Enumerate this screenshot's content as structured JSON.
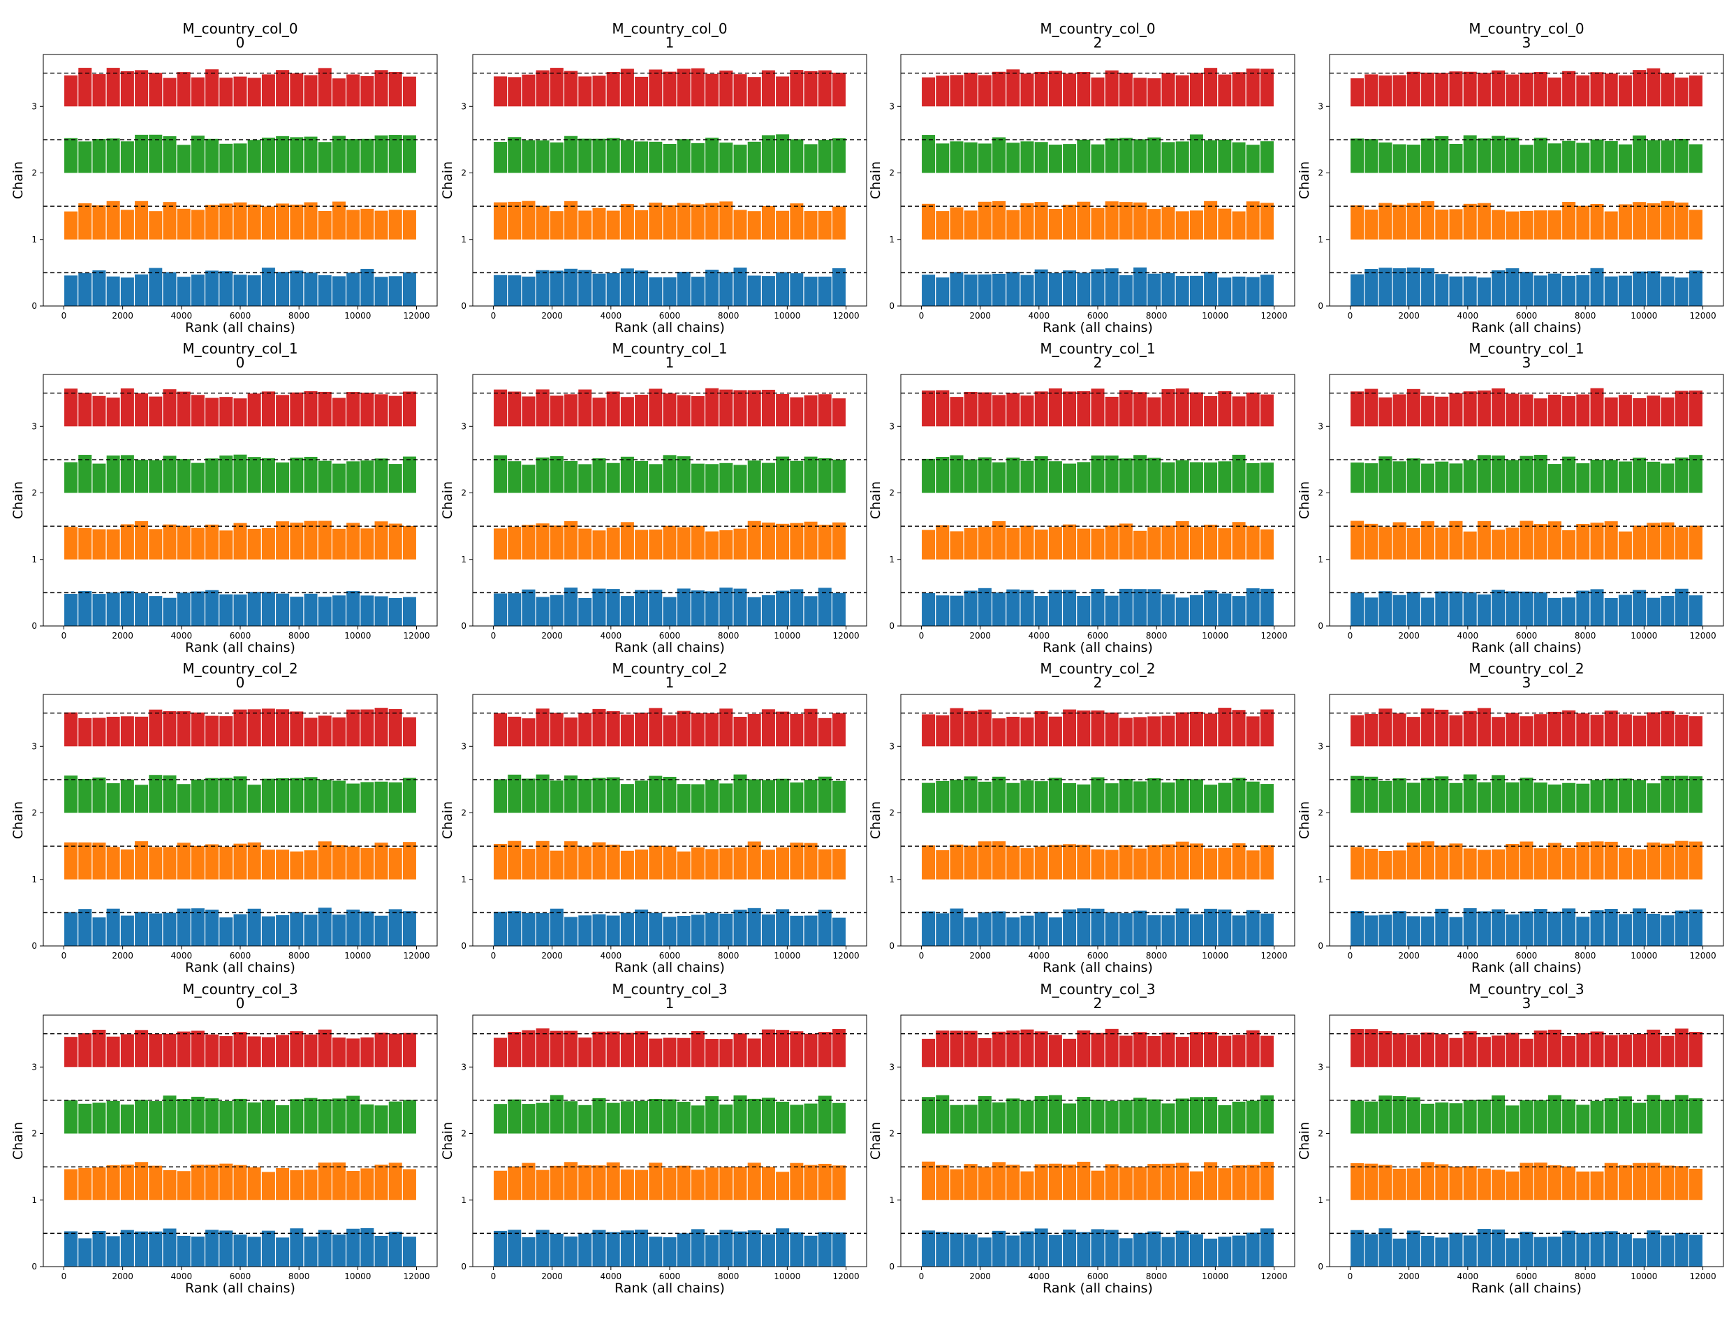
{
  "figure": {
    "type": "rank_plot_grid",
    "rows": 4,
    "cols": 4,
    "colors": [
      "#1f77b4",
      "#ff7f0e",
      "#2ca02c",
      "#d62728"
    ],
    "reference_line_color": "#000000"
  },
  "chart_data": [
    {
      "type": "bar",
      "title": "M_country_col_0",
      "subtitle": "0",
      "xlabel": "Rank (all chains)",
      "ylabel": "Chain",
      "xticks": [
        0,
        2000,
        4000,
        6000,
        8000,
        10000,
        12000
      ],
      "yticks": [
        0,
        1,
        2,
        3
      ],
      "xlim": [
        -700,
        12700
      ],
      "ylim": [
        0,
        3.78
      ],
      "bins": 25,
      "chains": [
        0,
        1,
        2,
        3
      ],
      "ref_levels": [
        0.5,
        1.5,
        2.5,
        3.5
      ]
    },
    {
      "type": "bar",
      "title": "M_country_col_0",
      "subtitle": "1",
      "xlabel": "Rank (all chains)",
      "ylabel": "Chain",
      "xticks": [
        0,
        2000,
        4000,
        6000,
        8000,
        10000,
        12000
      ],
      "yticks": [
        0,
        1,
        2,
        3
      ],
      "xlim": [
        -700,
        12700
      ],
      "ylim": [
        0,
        3.78
      ],
      "bins": 25,
      "chains": [
        0,
        1,
        2,
        3
      ],
      "ref_levels": [
        0.5,
        1.5,
        2.5,
        3.5
      ]
    },
    {
      "type": "bar",
      "title": "M_country_col_0",
      "subtitle": "2",
      "xlabel": "Rank (all chains)",
      "ylabel": "Chain",
      "xticks": [
        0,
        2000,
        4000,
        6000,
        8000,
        10000,
        12000
      ],
      "yticks": [
        0,
        1,
        2,
        3
      ],
      "xlim": [
        -700,
        12700
      ],
      "ylim": [
        0,
        3.78
      ],
      "bins": 25,
      "chains": [
        0,
        1,
        2,
        3
      ],
      "ref_levels": [
        0.5,
        1.5,
        2.5,
        3.5
      ]
    },
    {
      "type": "bar",
      "title": "M_country_col_0",
      "subtitle": "3",
      "xlabel": "Rank (all chains)",
      "ylabel": "Chain",
      "xticks": [
        0,
        2000,
        4000,
        6000,
        8000,
        10000,
        12000
      ],
      "yticks": [
        0,
        1,
        2,
        3
      ],
      "xlim": [
        -700,
        12700
      ],
      "ylim": [
        0,
        3.78
      ],
      "bins": 25,
      "chains": [
        0,
        1,
        2,
        3
      ],
      "ref_levels": [
        0.5,
        1.5,
        2.5,
        3.5
      ]
    },
    {
      "type": "bar",
      "title": "M_country_col_1",
      "subtitle": "0",
      "xlabel": "Rank (all chains)",
      "ylabel": "Chain",
      "xticks": [
        0,
        2000,
        4000,
        6000,
        8000,
        10000,
        12000
      ],
      "yticks": [
        0,
        1,
        2,
        3
      ],
      "xlim": [
        -700,
        12700
      ],
      "ylim": [
        0,
        3.78
      ],
      "bins": 25,
      "chains": [
        0,
        1,
        2,
        3
      ],
      "ref_levels": [
        0.5,
        1.5,
        2.5,
        3.5
      ]
    },
    {
      "type": "bar",
      "title": "M_country_col_1",
      "subtitle": "1",
      "xlabel": "Rank (all chains)",
      "ylabel": "Chain",
      "xticks": [
        0,
        2000,
        4000,
        6000,
        8000,
        10000,
        12000
      ],
      "yticks": [
        0,
        1,
        2,
        3
      ],
      "xlim": [
        -700,
        12700
      ],
      "ylim": [
        0,
        3.78
      ],
      "bins": 25,
      "chains": [
        0,
        1,
        2,
        3
      ],
      "ref_levels": [
        0.5,
        1.5,
        2.5,
        3.5
      ]
    },
    {
      "type": "bar",
      "title": "M_country_col_1",
      "subtitle": "2",
      "xlabel": "Rank (all chains)",
      "ylabel": "Chain",
      "xticks": [
        0,
        2000,
        4000,
        6000,
        8000,
        10000,
        12000
      ],
      "yticks": [
        0,
        1,
        2,
        3
      ],
      "xlim": [
        -700,
        12700
      ],
      "ylim": [
        0,
        3.78
      ],
      "bins": 25,
      "chains": [
        0,
        1,
        2,
        3
      ],
      "ref_levels": [
        0.5,
        1.5,
        2.5,
        3.5
      ]
    },
    {
      "type": "bar",
      "title": "M_country_col_1",
      "subtitle": "3",
      "xlabel": "Rank (all chains)",
      "ylabel": "Chain",
      "xticks": [
        0,
        2000,
        4000,
        6000,
        8000,
        10000,
        12000
      ],
      "yticks": [
        0,
        1,
        2,
        3
      ],
      "xlim": [
        -700,
        12700
      ],
      "ylim": [
        0,
        3.78
      ],
      "bins": 25,
      "chains": [
        0,
        1,
        2,
        3
      ],
      "ref_levels": [
        0.5,
        1.5,
        2.5,
        3.5
      ]
    },
    {
      "type": "bar",
      "title": "M_country_col_2",
      "subtitle": "0",
      "xlabel": "Rank (all chains)",
      "ylabel": "Chain",
      "xticks": [
        0,
        2000,
        4000,
        6000,
        8000,
        10000,
        12000
      ],
      "yticks": [
        0,
        1,
        2,
        3
      ],
      "xlim": [
        -700,
        12700
      ],
      "ylim": [
        0,
        3.78
      ],
      "bins": 25,
      "chains": [
        0,
        1,
        2,
        3
      ],
      "ref_levels": [
        0.5,
        1.5,
        2.5,
        3.5
      ]
    },
    {
      "type": "bar",
      "title": "M_country_col_2",
      "subtitle": "1",
      "xlabel": "Rank (all chains)",
      "ylabel": "Chain",
      "xticks": [
        0,
        2000,
        4000,
        6000,
        8000,
        10000,
        12000
      ],
      "yticks": [
        0,
        1,
        2,
        3
      ],
      "xlim": [
        -700,
        12700
      ],
      "ylim": [
        0,
        3.78
      ],
      "bins": 25,
      "chains": [
        0,
        1,
        2,
        3
      ],
      "ref_levels": [
        0.5,
        1.5,
        2.5,
        3.5
      ]
    },
    {
      "type": "bar",
      "title": "M_country_col_2",
      "subtitle": "2",
      "xlabel": "Rank (all chains)",
      "ylabel": "Chain",
      "xticks": [
        0,
        2000,
        4000,
        6000,
        8000,
        10000,
        12000
      ],
      "yticks": [
        0,
        1,
        2,
        3
      ],
      "xlim": [
        -700,
        12700
      ],
      "ylim": [
        0,
        3.78
      ],
      "bins": 25,
      "chains": [
        0,
        1,
        2,
        3
      ],
      "ref_levels": [
        0.5,
        1.5,
        2.5,
        3.5
      ]
    },
    {
      "type": "bar",
      "title": "M_country_col_2",
      "subtitle": "3",
      "xlabel": "Rank (all chains)",
      "ylabel": "Chain",
      "xticks": [
        0,
        2000,
        4000,
        6000,
        8000,
        10000,
        12000
      ],
      "yticks": [
        0,
        1,
        2,
        3
      ],
      "xlim": [
        -700,
        12700
      ],
      "ylim": [
        0,
        3.78
      ],
      "bins": 25,
      "chains": [
        0,
        1,
        2,
        3
      ],
      "ref_levels": [
        0.5,
        1.5,
        2.5,
        3.5
      ]
    },
    {
      "type": "bar",
      "title": "M_country_col_3",
      "subtitle": "0",
      "xlabel": "Rank (all chains)",
      "ylabel": "Chain",
      "xticks": [
        0,
        2000,
        4000,
        6000,
        8000,
        10000,
        12000
      ],
      "yticks": [
        0,
        1,
        2,
        3
      ],
      "xlim": [
        -700,
        12700
      ],
      "ylim": [
        0,
        3.78
      ],
      "bins": 25,
      "chains": [
        0,
        1,
        2,
        3
      ],
      "ref_levels": [
        0.5,
        1.5,
        2.5,
        3.5
      ]
    },
    {
      "type": "bar",
      "title": "M_country_col_3",
      "subtitle": "1",
      "xlabel": "Rank (all chains)",
      "ylabel": "Chain",
      "xticks": [
        0,
        2000,
        4000,
        6000,
        8000,
        10000,
        12000
      ],
      "yticks": [
        0,
        1,
        2,
        3
      ],
      "xlim": [
        -700,
        12700
      ],
      "ylim": [
        0,
        3.78
      ],
      "bins": 25,
      "chains": [
        0,
        1,
        2,
        3
      ],
      "ref_levels": [
        0.5,
        1.5,
        2.5,
        3.5
      ]
    },
    {
      "type": "bar",
      "title": "M_country_col_3",
      "subtitle": "2",
      "xlabel": "Rank (all chains)",
      "ylabel": "Chain",
      "xticks": [
        0,
        2000,
        4000,
        6000,
        8000,
        10000,
        12000
      ],
      "yticks": [
        0,
        1,
        2,
        3
      ],
      "xlim": [
        -700,
        12700
      ],
      "ylim": [
        0,
        3.78
      ],
      "bins": 25,
      "chains": [
        0,
        1,
        2,
        3
      ],
      "ref_levels": [
        0.5,
        1.5,
        2.5,
        3.5
      ]
    },
    {
      "type": "bar",
      "title": "M_country_col_3",
      "subtitle": "3",
      "xlabel": "Rank (all chains)",
      "ylabel": "Chain",
      "xticks": [
        0,
        2000,
        4000,
        6000,
        8000,
        10000,
        12000
      ],
      "yticks": [
        0,
        1,
        2,
        3
      ],
      "xlim": [
        -700,
        12700
      ],
      "ylim": [
        0,
        3.78
      ],
      "bins": 25,
      "chains": [
        0,
        1,
        2,
        3
      ],
      "ref_levels": [
        0.5,
        1.5,
        2.5,
        3.5
      ]
    }
  ]
}
